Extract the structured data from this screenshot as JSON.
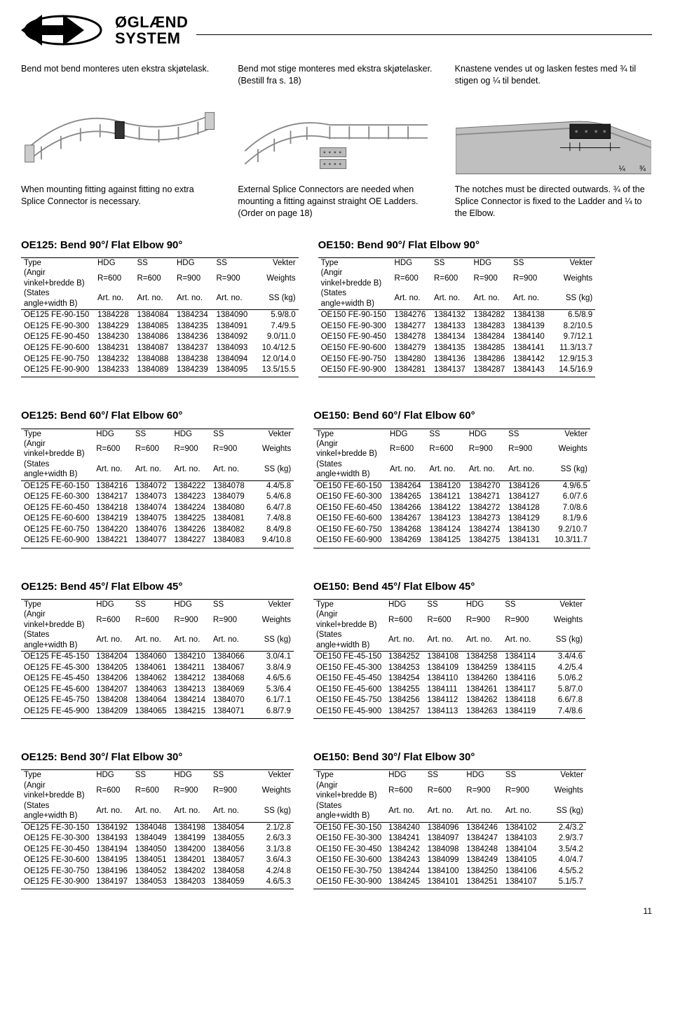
{
  "brand_top": "ØGLÆND",
  "brand_bottom": "SYSTEM",
  "captions_top": [
    "Bend mot bend monteres uten ekstra skjøtelask.",
    "Bend mot stige monteres med ekstra skjøtelasker. (Bestill fra s. 18)",
    "Knastene vendes ut og lasken festes med ¾ til stigen og ¼ til bendet."
  ],
  "captions_bottom": [
    "When mounting fitting against fitting no extra Splice Connector is necessary.",
    "External Splice Connectors are needed when mounting a fitting against straight OE Ladders. (Order on page 18)",
    "The notches must be directed outwards. ¾ of the Splice Connector is fixed to the Ladder and ¼ to the Elbow."
  ],
  "fractions": [
    "¼",
    "¾"
  ],
  "header_labels": {
    "type": "Type",
    "angir": "(Angir vinkel+bredde B)",
    "states": "(States angle+width B)",
    "hdg": "HDG",
    "ss": "SS",
    "r600": "R=600",
    "r900": "R=900",
    "artno": "Art. no.",
    "vekter": "Vekter",
    "weights": "Weights",
    "sskg": "SS (kg)"
  },
  "tables": [
    {
      "title": "OE125: Bend 90°/ Flat Elbow 90°",
      "rows": [
        [
          "OE125 FE-90-150",
          "1384228",
          "1384084",
          "1384234",
          "1384090",
          "5.9/8.0"
        ],
        [
          "OE125 FE-90-300",
          "1384229",
          "1384085",
          "1384235",
          "1384091",
          "7.4/9.5"
        ],
        [
          "OE125 FE-90-450",
          "1384230",
          "1384086",
          "1384236",
          "1384092",
          "9.0/11.0"
        ],
        [
          "OE125 FE-90-600",
          "1384231",
          "1384087",
          "1384237",
          "1384093",
          "10.4/12.5"
        ],
        [
          "OE125 FE-90-750",
          "1384232",
          "1384088",
          "1384238",
          "1384094",
          "12.0/14.0"
        ],
        [
          "OE125 FE-90-900",
          "1384233",
          "1384089",
          "1384239",
          "1384095",
          "13.5/15.5"
        ]
      ]
    },
    {
      "title": "OE150: Bend 90°/ Flat Elbow 90°",
      "rows": [
        [
          "OE150 FE-90-150",
          "1384276",
          "1384132",
          "1384282",
          "1384138",
          "6.5/8.9"
        ],
        [
          "OE150 FE-90-300",
          "1384277",
          "1384133",
          "1384283",
          "1384139",
          "8.2/10.5"
        ],
        [
          "OE150 FE-90-450",
          "1384278",
          "1384134",
          "1384284",
          "1384140",
          "9.7/12.1"
        ],
        [
          "OE150 FE-90-600",
          "1384279",
          "1384135",
          "1384285",
          "1384141",
          "11.3/13.7"
        ],
        [
          "OE150 FE-90-750",
          "1384280",
          "1384136",
          "1384286",
          "1384142",
          "12.9/15.3"
        ],
        [
          "OE150 FE-90-900",
          "1384281",
          "1384137",
          "1384287",
          "1384143",
          "14.5/16.9"
        ]
      ]
    },
    {
      "title": "OE125: Bend 60°/ Flat Elbow 60°",
      "rows": [
        [
          "OE125 FE-60-150",
          "1384216",
          "1384072",
          "1384222",
          "1384078",
          "4.4/5.8"
        ],
        [
          "OE125 FE-60-300",
          "1384217",
          "1384073",
          "1384223",
          "1384079",
          "5.4/6.8"
        ],
        [
          "OE125 FE-60-450",
          "1384218",
          "1384074",
          "1384224",
          "1384080",
          "6.4/7.8"
        ],
        [
          "OE125 FE-60-600",
          "1384219",
          "1384075",
          "1384225",
          "1384081",
          "7.4/8.8"
        ],
        [
          "OE125 FE-60-750",
          "1384220",
          "1384076",
          "1384226",
          "1384082",
          "8.4/9.8"
        ],
        [
          "OE125 FE-60-900",
          "1384221",
          "1384077",
          "1384227",
          "1384083",
          "9.4/10.8"
        ]
      ]
    },
    {
      "title": "OE150: Bend 60°/ Flat Elbow 60°",
      "rows": [
        [
          "OE150 FE-60-150",
          "1384264",
          "1384120",
          "1384270",
          "1384126",
          "4.9/6.5"
        ],
        [
          "OE150 FE-60-300",
          "1384265",
          "1384121",
          "1384271",
          "1384127",
          "6.0/7.6"
        ],
        [
          "OE150 FE-60-450",
          "1384266",
          "1384122",
          "1384272",
          "1384128",
          "7.0/8.6"
        ],
        [
          "OE150 FE-60-600",
          "1384267",
          "1384123",
          "1384273",
          "1384129",
          "8.1/9.6"
        ],
        [
          "OE150 FE-60-750",
          "1384268",
          "1384124",
          "1384274",
          "1384130",
          "9.2/10.7"
        ],
        [
          "OE150 FE-60-900",
          "1384269",
          "1384125",
          "1384275",
          "1384131",
          "10.3/11.7"
        ]
      ]
    },
    {
      "title": "OE125: Bend 45°/ Flat Elbow 45°",
      "rows": [
        [
          "OE125 FE-45-150",
          "1384204",
          "1384060",
          "1384210",
          "1384066",
          "3.0/4.1"
        ],
        [
          "OE125 FE-45-300",
          "1384205",
          "1384061",
          "1384211",
          "1384067",
          "3.8/4.9"
        ],
        [
          "OE125 FE-45-450",
          "1384206",
          "1384062",
          "1384212",
          "1384068",
          "4.6/5.6"
        ],
        [
          "OE125 FE-45-600",
          "1384207",
          "1384063",
          "1384213",
          "1384069",
          "5.3/6.4"
        ],
        [
          "OE125 FE-45-750",
          "1384208",
          "1384064",
          "1384214",
          "1384070",
          "6.1/7.1"
        ],
        [
          "OE125 FE-45-900",
          "1384209",
          "1384065",
          "1384215",
          "1384071",
          "6.8/7.9"
        ]
      ]
    },
    {
      "title": "OE150: Bend 45°/ Flat Elbow 45°",
      "rows": [
        [
          "OE150 FE-45-150",
          "1384252",
          "1384108",
          "1384258",
          "1384114",
          "3.4/4.6"
        ],
        [
          "OE150 FE-45-300",
          "1384253",
          "1384109",
          "1384259",
          "1384115",
          "4.2/5.4"
        ],
        [
          "OE150 FE-45-450",
          "1384254",
          "1384110",
          "1384260",
          "1384116",
          "5.0/6.2"
        ],
        [
          "OE150 FE-45-600",
          "1384255",
          "1384111",
          "1384261",
          "1384117",
          "5.8/7.0"
        ],
        [
          "OE150 FE-45-750",
          "1384256",
          "1384112",
          "1384262",
          "1384118",
          "6.6/7.8"
        ],
        [
          "OE150 FE-45-900",
          "1384257",
          "1384113",
          "1384263",
          "1384119",
          "7.4/8.6"
        ]
      ]
    },
    {
      "title": "OE125: Bend 30°/ Flat Elbow 30°",
      "rows": [
        [
          "OE125 FE-30-150",
          "1384192",
          "1384048",
          "1384198",
          "1384054",
          "2.1/2.8"
        ],
        [
          "OE125 FE-30-300",
          "1384193",
          "1384049",
          "1384199",
          "1384055",
          "2.6/3.3"
        ],
        [
          "OE125 FE-30-450",
          "1384194",
          "1384050",
          "1384200",
          "1384056",
          "3.1/3.8"
        ],
        [
          "OE125 FE-30-600",
          "1384195",
          "1384051",
          "1384201",
          "1384057",
          "3.6/4.3"
        ],
        [
          "OE125 FE-30-750",
          "1384196",
          "1384052",
          "1384202",
          "1384058",
          "4.2/4.8"
        ],
        [
          "OE125 FE-30-900",
          "1384197",
          "1384053",
          "1384203",
          "1384059",
          "4.6/5.3"
        ]
      ]
    },
    {
      "title": "OE150: Bend 30°/ Flat Elbow 30°",
      "rows": [
        [
          "OE150 FE-30-150",
          "1384240",
          "1384096",
          "1384246",
          "1384102",
          "2.4/3.2"
        ],
        [
          "OE150 FE-30-300",
          "1384241",
          "1384097",
          "1384247",
          "1384103",
          "2.9/3.7"
        ],
        [
          "OE150 FE-30-450",
          "1384242",
          "1384098",
          "1384248",
          "1384104",
          "3.5/4.2"
        ],
        [
          "OE150 FE-30-600",
          "1384243",
          "1384099",
          "1384249",
          "1384105",
          "4.0/4.7"
        ],
        [
          "OE150 FE-30-750",
          "1384244",
          "1384100",
          "1384250",
          "1384106",
          "4.5/5.2"
        ],
        [
          "OE150 FE-30-900",
          "1384245",
          "1384101",
          "1384251",
          "1384107",
          "5.1/5.7"
        ]
      ]
    }
  ],
  "page_number": "11"
}
